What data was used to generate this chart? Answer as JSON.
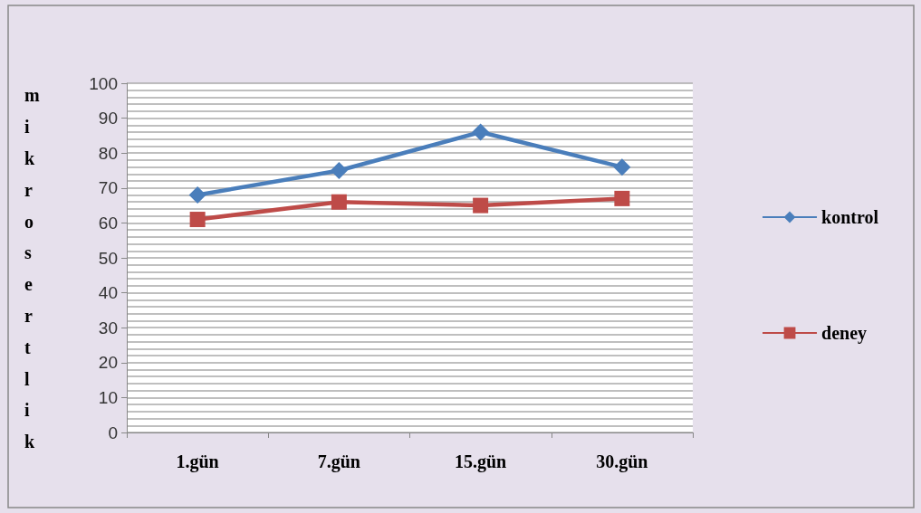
{
  "chart_data": {
    "type": "line",
    "ylabel": "mikrosertlik",
    "categories": [
      "1.gün",
      "7.gün",
      "15.gün",
      "30.gün"
    ],
    "series": [
      {
        "name": "kontrol",
        "color": "#4a7ebb",
        "values": [
          68,
          75,
          86,
          76
        ],
        "marker": "diamond"
      },
      {
        "name": "deney",
        "color": "#be4b48",
        "values": [
          61,
          66,
          65,
          67
        ],
        "marker": "square"
      }
    ],
    "ylim": [
      0,
      100
    ],
    "yticks": [
      0,
      10,
      20,
      30,
      40,
      50,
      60,
      70,
      80,
      90,
      100
    ],
    "grid": "y",
    "legend": "right"
  }
}
